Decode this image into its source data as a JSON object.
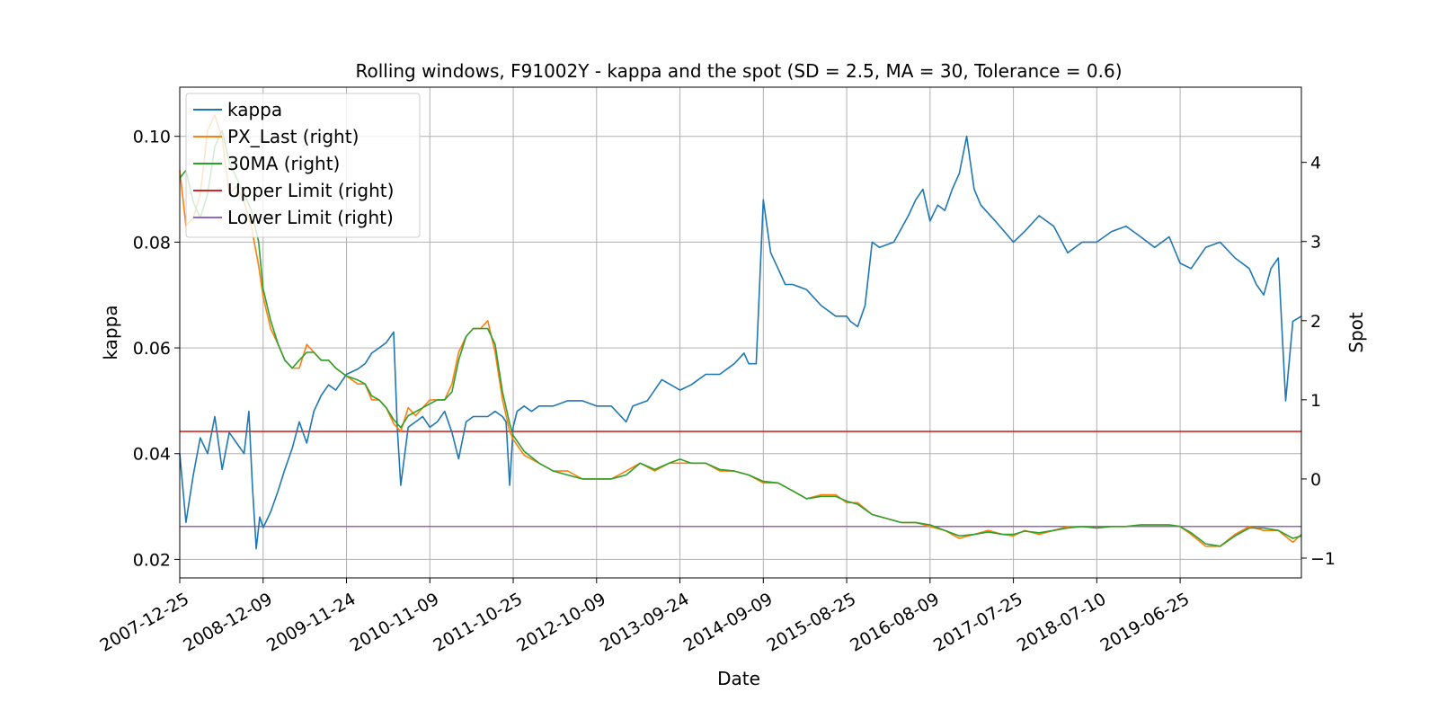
{
  "chart_data": {
    "type": "line",
    "title": "Rolling windows, F91002Y - kappa and the spot (SD = 2.5, MA = 30, Tolerance  = 0.6)",
    "xlabel": "Date",
    "ylabel_left": "kappa",
    "ylabel_right": "Spot",
    "x_range": [
      "2007-12-25",
      "2020-11-15"
    ],
    "ylim_left": [
      0.0165,
      0.1093
    ],
    "ylim_right": [
      -1.25,
      4.95
    ],
    "grid": true,
    "legend_placement": "top-left",
    "x_ticks": [
      "2007-12-25",
      "2008-12-09",
      "2009-11-24",
      "2010-11-09",
      "2011-10-25",
      "2012-10-09",
      "2013-09-24",
      "2014-09-09",
      "2015-08-25",
      "2016-08-09",
      "2017-07-25",
      "2018-07-10",
      "2019-06-25"
    ],
    "y_ticks_left": [
      "0.02",
      "0.04",
      "0.06",
      "0.08",
      "0.10"
    ],
    "y_ticks_right": [
      "−1",
      "0",
      "1",
      "2",
      "3",
      "4"
    ],
    "series": [
      {
        "name": "kappa",
        "axis": "left",
        "color": "#1f77b4",
        "x": [
          "2007-12-25",
          "2008-01-20",
          "2008-02-20",
          "2008-03-20",
          "2008-04-20",
          "2008-05-20",
          "2008-06-20",
          "2008-07-20",
          "2008-08-20",
          "2008-09-20",
          "2008-10-10",
          "2008-10-25",
          "2008-11-10",
          "2008-11-25",
          "2008-12-09",
          "2009-01-10",
          "2009-02-10",
          "2009-03-10",
          "2009-04-10",
          "2009-05-10",
          "2009-06-10",
          "2009-07-10",
          "2009-08-10",
          "2009-09-10",
          "2009-10-10",
          "2009-11-24",
          "2010-01-10",
          "2010-02-10",
          "2010-03-10",
          "2010-04-10",
          "2010-05-10",
          "2010-06-10",
          "2010-06-25",
          "2010-07-10",
          "2010-08-10",
          "2010-09-10",
          "2010-10-10",
          "2010-11-09",
          "2010-12-10",
          "2011-01-10",
          "2011-02-10",
          "2011-03-10",
          "2011-04-10",
          "2011-05-10",
          "2011-06-10",
          "2011-07-10",
          "2011-08-10",
          "2011-09-10",
          "2011-09-25",
          "2011-10-10",
          "2011-10-25",
          "2011-11-10",
          "2011-12-10",
          "2012-01-10",
          "2012-02-10",
          "2012-04-10",
          "2012-06-10",
          "2012-08-10",
          "2012-10-09",
          "2012-12-10",
          "2013-02-10",
          "2013-03-10",
          "2013-05-10",
          "2013-07-10",
          "2013-09-24",
          "2013-11-10",
          "2014-01-10",
          "2014-03-10",
          "2014-05-10",
          "2014-06-20",
          "2014-07-10",
          "2014-07-25",
          "2014-08-10",
          "2014-09-09",
          "2014-10-10",
          "2014-11-10",
          "2014-12-10",
          "2015-01-10",
          "2015-03-10",
          "2015-05-10",
          "2015-07-10",
          "2015-08-25",
          "2015-09-10",
          "2015-10-10",
          "2015-11-10",
          "2015-12-10",
          "2016-01-10",
          "2016-03-10",
          "2016-05-10",
          "2016-06-10",
          "2016-07-10",
          "2016-08-09",
          "2016-09-10",
          "2016-10-10",
          "2016-11-10",
          "2016-12-10",
          "2017-01-10",
          "2017-02-10",
          "2017-03-10",
          "2017-05-10",
          "2017-07-25",
          "2017-09-10",
          "2017-11-10",
          "2018-01-10",
          "2018-03-10",
          "2018-05-10",
          "2018-07-10",
          "2018-09-10",
          "2018-11-10",
          "2019-01-10",
          "2019-03-10",
          "2019-05-10",
          "2019-06-25",
          "2019-08-10",
          "2019-10-10",
          "2019-12-10",
          "2020-02-10",
          "2020-04-10",
          "2020-05-10",
          "2020-06-10",
          "2020-07-10",
          "2020-08-10",
          "2020-09-10",
          "2020-10-10",
          "2020-11-15"
        ],
        "y": [
          0.04,
          0.027,
          0.036,
          0.043,
          0.04,
          0.047,
          0.037,
          0.044,
          0.042,
          0.04,
          0.048,
          0.034,
          0.022,
          0.028,
          0.026,
          0.029,
          0.033,
          0.037,
          0.041,
          0.046,
          0.042,
          0.048,
          0.051,
          0.053,
          0.052,
          0.055,
          0.056,
          0.057,
          0.059,
          0.06,
          0.061,
          0.063,
          0.045,
          0.034,
          0.045,
          0.046,
          0.047,
          0.045,
          0.046,
          0.048,
          0.044,
          0.039,
          0.046,
          0.047,
          0.047,
          0.047,
          0.048,
          0.047,
          0.046,
          0.034,
          0.045,
          0.048,
          0.049,
          0.048,
          0.049,
          0.049,
          0.05,
          0.05,
          0.049,
          0.049,
          0.046,
          0.049,
          0.05,
          0.054,
          0.052,
          0.053,
          0.055,
          0.055,
          0.057,
          0.059,
          0.057,
          0.057,
          0.057,
          0.088,
          0.078,
          0.075,
          0.072,
          0.072,
          0.071,
          0.068,
          0.066,
          0.066,
          0.065,
          0.064,
          0.068,
          0.08,
          0.079,
          0.08,
          0.085,
          0.088,
          0.09,
          0.084,
          0.087,
          0.086,
          0.09,
          0.093,
          0.1,
          0.09,
          0.087,
          0.084,
          0.08,
          0.082,
          0.085,
          0.083,
          0.078,
          0.08,
          0.08,
          0.082,
          0.083,
          0.081,
          0.079,
          0.081,
          0.076,
          0.075,
          0.079,
          0.08,
          0.077,
          0.075,
          0.072,
          0.07,
          0.075,
          0.077,
          0.05,
          0.065,
          0.066
        ]
      },
      {
        "name": "PX_Last (right)",
        "axis": "right",
        "color": "#ff7f0e",
        "x": [
          "2007-12-25",
          "2008-01-20",
          "2008-02-20",
          "2008-03-20",
          "2008-04-20",
          "2008-05-20",
          "2008-06-20",
          "2008-07-20",
          "2008-08-20",
          "2008-09-20",
          "2008-10-20",
          "2008-11-20",
          "2008-12-09",
          "2009-01-10",
          "2009-02-10",
          "2009-03-10",
          "2009-04-10",
          "2009-05-10",
          "2009-06-10",
          "2009-07-10",
          "2009-08-10",
          "2009-09-10",
          "2009-10-10",
          "2009-11-24",
          "2010-01-10",
          "2010-02-10",
          "2010-03-10",
          "2010-04-10",
          "2010-05-10",
          "2010-06-10",
          "2010-07-10",
          "2010-08-10",
          "2010-09-10",
          "2010-10-10",
          "2010-11-09",
          "2010-12-10",
          "2011-01-10",
          "2011-02-10",
          "2011-03-10",
          "2011-04-10",
          "2011-05-10",
          "2011-06-10",
          "2011-07-10",
          "2011-08-10",
          "2011-09-10",
          "2011-10-10",
          "2011-10-25",
          "2011-12-10",
          "2012-02-10",
          "2012-04-10",
          "2012-06-10",
          "2012-08-10",
          "2012-10-09",
          "2012-12-10",
          "2013-02-10",
          "2013-04-10",
          "2013-06-10",
          "2013-08-10",
          "2013-09-24",
          "2013-11-10",
          "2014-01-10",
          "2014-03-10",
          "2014-05-10",
          "2014-07-10",
          "2014-09-09",
          "2014-11-10",
          "2015-01-10",
          "2015-03-10",
          "2015-05-10",
          "2015-07-10",
          "2015-08-25",
          "2015-10-10",
          "2015-12-10",
          "2016-02-10",
          "2016-04-10",
          "2016-06-10",
          "2016-08-09",
          "2016-10-10",
          "2016-12-10",
          "2017-02-10",
          "2017-04-10",
          "2017-06-10",
          "2017-07-25",
          "2017-09-10",
          "2017-11-10",
          "2018-01-10",
          "2018-03-10",
          "2018-05-10",
          "2018-07-10",
          "2018-09-10",
          "2018-11-10",
          "2019-01-10",
          "2019-03-10",
          "2019-05-10",
          "2019-06-25",
          "2019-08-10",
          "2019-10-10",
          "2019-12-10",
          "2020-02-10",
          "2020-04-10",
          "2020-06-10",
          "2020-08-10",
          "2020-10-10",
          "2020-11-15"
        ],
        "y": [
          3.9,
          3.2,
          3.3,
          3.6,
          4.4,
          4.6,
          4.3,
          3.6,
          3.7,
          3.5,
          3.2,
          2.7,
          2.3,
          1.9,
          1.7,
          1.5,
          1.4,
          1.4,
          1.7,
          1.6,
          1.5,
          1.5,
          1.4,
          1.3,
          1.2,
          1.2,
          1.0,
          1.0,
          0.9,
          0.7,
          0.6,
          0.9,
          0.8,
          0.9,
          1.0,
          1.0,
          1.0,
          1.2,
          1.6,
          1.8,
          1.9,
          1.9,
          2.0,
          1.6,
          1.0,
          0.6,
          0.5,
          0.3,
          0.2,
          0.1,
          0.1,
          0.0,
          0.0,
          0.0,
          0.1,
          0.2,
          0.1,
          0.2,
          0.2,
          0.2,
          0.2,
          0.1,
          0.1,
          0.05,
          -0.05,
          -0.05,
          -0.15,
          -0.25,
          -0.2,
          -0.2,
          -0.3,
          -0.3,
          -0.45,
          -0.5,
          -0.55,
          -0.55,
          -0.6,
          -0.65,
          -0.75,
          -0.7,
          -0.65,
          -0.7,
          -0.72,
          -0.65,
          -0.7,
          -0.65,
          -0.6,
          -0.6,
          -0.62,
          -0.6,
          -0.6,
          -0.58,
          -0.58,
          -0.58,
          -0.6,
          -0.7,
          -0.85,
          -0.85,
          -0.7,
          -0.6,
          -0.65,
          -0.65,
          -0.8,
          -0.7
        ]
      },
      {
        "name": "30MA (right)",
        "axis": "right",
        "color": "#2ca02c",
        "x": [
          "2007-12-25",
          "2008-01-20",
          "2008-02-20",
          "2008-03-20",
          "2008-04-20",
          "2008-05-20",
          "2008-06-20",
          "2008-07-20",
          "2008-08-20",
          "2008-09-20",
          "2008-10-20",
          "2008-11-20",
          "2008-12-09",
          "2009-01-10",
          "2009-02-10",
          "2009-03-10",
          "2009-04-10",
          "2009-05-10",
          "2009-06-10",
          "2009-07-10",
          "2009-08-10",
          "2009-09-10",
          "2009-10-10",
          "2009-11-24",
          "2010-01-10",
          "2010-02-10",
          "2010-03-10",
          "2010-04-10",
          "2010-05-10",
          "2010-06-10",
          "2010-07-10",
          "2010-08-10",
          "2010-09-10",
          "2010-10-10",
          "2010-11-09",
          "2010-12-10",
          "2011-01-10",
          "2011-02-10",
          "2011-03-10",
          "2011-04-10",
          "2011-05-10",
          "2011-06-10",
          "2011-07-10",
          "2011-08-10",
          "2011-09-10",
          "2011-10-10",
          "2011-10-25",
          "2011-12-10",
          "2012-02-10",
          "2012-04-10",
          "2012-06-10",
          "2012-08-10",
          "2012-10-09",
          "2012-12-10",
          "2013-02-10",
          "2013-04-10",
          "2013-06-10",
          "2013-08-10",
          "2013-09-24",
          "2013-11-10",
          "2014-01-10",
          "2014-03-10",
          "2014-05-10",
          "2014-07-10",
          "2014-09-09",
          "2014-11-10",
          "2015-01-10",
          "2015-03-10",
          "2015-05-10",
          "2015-07-10",
          "2015-08-25",
          "2015-10-10",
          "2015-12-10",
          "2016-02-10",
          "2016-04-10",
          "2016-06-10",
          "2016-08-09",
          "2016-10-10",
          "2016-12-10",
          "2017-02-10",
          "2017-04-10",
          "2017-06-10",
          "2017-07-25",
          "2017-09-10",
          "2017-11-10",
          "2018-01-10",
          "2018-03-10",
          "2018-05-10",
          "2018-07-10",
          "2018-09-10",
          "2018-11-10",
          "2019-01-10",
          "2019-03-10",
          "2019-05-10",
          "2019-06-25",
          "2019-08-10",
          "2019-10-10",
          "2019-12-10",
          "2020-02-10",
          "2020-04-10",
          "2020-06-10",
          "2020-08-10",
          "2020-10-10",
          "2020-11-15"
        ],
        "y": [
          3.8,
          3.9,
          3.5,
          3.3,
          3.6,
          4.2,
          4.4,
          4.0,
          3.8,
          3.6,
          3.4,
          3.0,
          2.4,
          2.0,
          1.7,
          1.5,
          1.4,
          1.5,
          1.6,
          1.6,
          1.5,
          1.5,
          1.4,
          1.3,
          1.25,
          1.2,
          1.05,
          1.0,
          0.9,
          0.75,
          0.65,
          0.8,
          0.85,
          0.9,
          0.95,
          1.0,
          1.0,
          1.1,
          1.5,
          1.8,
          1.9,
          1.9,
          1.9,
          1.7,
          1.1,
          0.7,
          0.55,
          0.35,
          0.2,
          0.1,
          0.05,
          0.0,
          0.0,
          0.0,
          0.05,
          0.2,
          0.12,
          0.2,
          0.25,
          0.2,
          0.2,
          0.12,
          0.1,
          0.05,
          -0.03,
          -0.05,
          -0.15,
          -0.25,
          -0.22,
          -0.22,
          -0.28,
          -0.32,
          -0.45,
          -0.5,
          -0.55,
          -0.55,
          -0.58,
          -0.65,
          -0.72,
          -0.7,
          -0.67,
          -0.7,
          -0.7,
          -0.66,
          -0.68,
          -0.65,
          -0.62,
          -0.6,
          -0.62,
          -0.6,
          -0.6,
          -0.58,
          -0.58,
          -0.58,
          -0.6,
          -0.68,
          -0.82,
          -0.85,
          -0.72,
          -0.62,
          -0.62,
          -0.65,
          -0.75,
          -0.72
        ]
      },
      {
        "name": "Upper Limit (right)",
        "axis": "right",
        "color": "#d62728",
        "constant": 0.6
      },
      {
        "name": "Lower Limit (right)",
        "axis": "right",
        "color": "#9467bd",
        "constant": -0.6
      }
    ]
  }
}
